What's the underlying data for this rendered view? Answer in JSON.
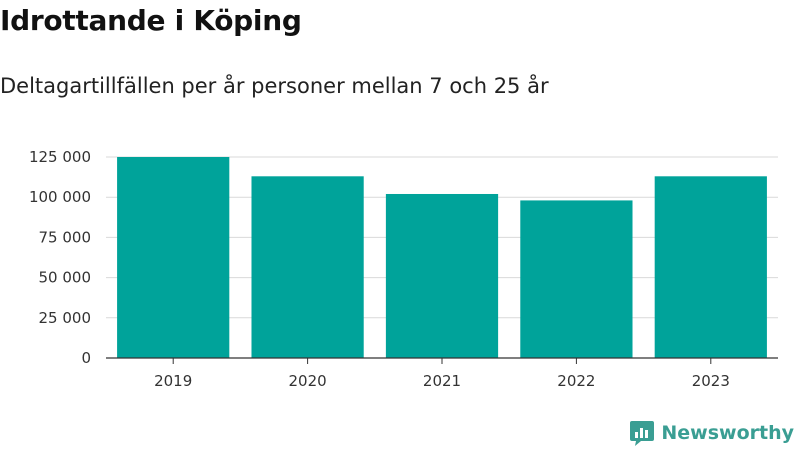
{
  "header": {
    "title": "Idrottande i Köping",
    "subtitle": "Deltagartillfällen per år personer mellan 7 och 25 år"
  },
  "brand": {
    "name": "Newsworthy",
    "icon": "newsworthy-logo-icon",
    "color": "#3a9e93"
  },
  "chart_data": {
    "type": "bar",
    "categories": [
      "2019",
      "2020",
      "2021",
      "2022",
      "2023"
    ],
    "values": [
      125000,
      113000,
      102000,
      98000,
      113000
    ],
    "ylim": [
      0,
      125000
    ],
    "yticks": [
      0,
      25000,
      50000,
      75000,
      100000,
      125000
    ],
    "ytick_labels": [
      "0",
      "25 000",
      "50 000",
      "75 000",
      "100 000",
      "125 000"
    ],
    "xlabel": "",
    "ylabel": "",
    "grid": true,
    "bar_color": "#00a39a"
  }
}
